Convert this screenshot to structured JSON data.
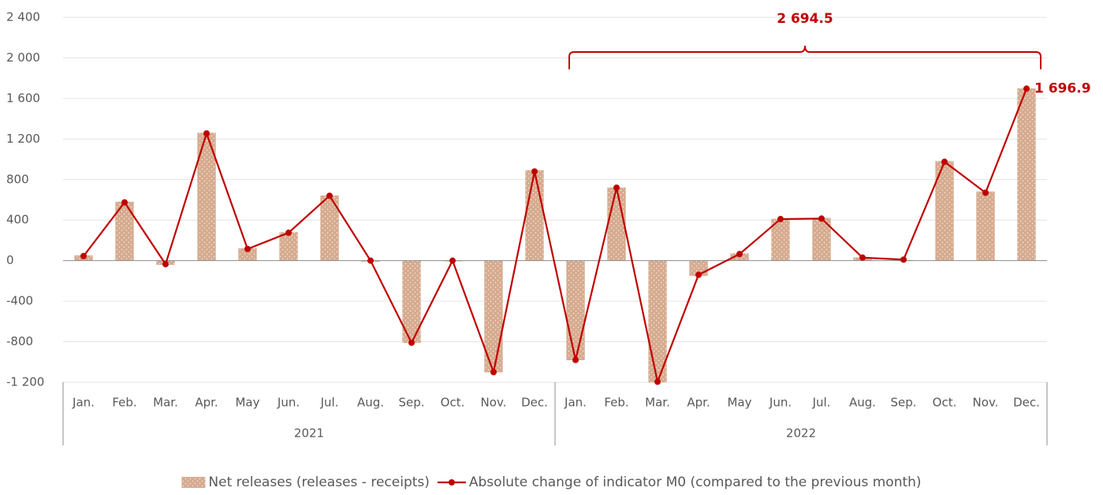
{
  "chart_data": {
    "type": "bar_line",
    "groups": [
      {
        "name": "2021",
        "categories": [
          "Jan.",
          "Feb.",
          "Mar.",
          "Apr.",
          "May",
          "Jun.",
          "Jul.",
          "Aug.",
          "Sep.",
          "Oct.",
          "Nov.",
          "Dec."
        ]
      },
      {
        "name": "2022",
        "categories": [
          "Jan.",
          "Feb.",
          "Mar.",
          "Apr.",
          "May",
          "Jun.",
          "Jul.",
          "Aug.",
          "Sep.",
          "Oct.",
          "Nov.",
          "Dec."
        ]
      }
    ],
    "series": [
      {
        "name": "Net releases (releases - receipts)",
        "type": "bar",
        "color": "#d6ab8f",
        "values": [
          50,
          580,
          -40,
          1260,
          120,
          280,
          640,
          -10,
          -810,
          -5,
          -1100,
          890,
          -980,
          720,
          -1200,
          -150,
          70,
          410,
          420,
          30,
          5,
          980,
          680,
          1697
        ]
      },
      {
        "name": "Absolute change of indicator M0 (compared to the previous month)",
        "type": "line",
        "color": "#c00000",
        "values": [
          45,
          575,
          -35,
          1255,
          115,
          275,
          640,
          0,
          -810,
          0,
          -1100,
          880,
          -980,
          720,
          -1195,
          -140,
          65,
          410,
          415,
          30,
          10,
          975,
          670,
          1696.9
        ],
        "value_labels": [
          null,
          null,
          null,
          null,
          null,
          null,
          null,
          null,
          null,
          null,
          null,
          null,
          null,
          null,
          null,
          null,
          null,
          null,
          null,
          null,
          null,
          null,
          null,
          "1 696.9"
        ]
      }
    ],
    "annotation": {
      "text": "2 694.5",
      "from_group": "2022"
    },
    "ylim": [
      -1200,
      2400
    ],
    "yticks": [
      {
        "value": -1200,
        "label": "-1 200"
      },
      -800,
      -400,
      0,
      400,
      800,
      {
        "value": 1200,
        "label": "1 200"
      },
      {
        "value": 1600,
        "label": "1 600"
      },
      {
        "value": 2000,
        "label": "2 000"
      },
      {
        "value": 2400,
        "label": "2 400"
      }
    ],
    "grid": true,
    "legend": "bottom"
  }
}
